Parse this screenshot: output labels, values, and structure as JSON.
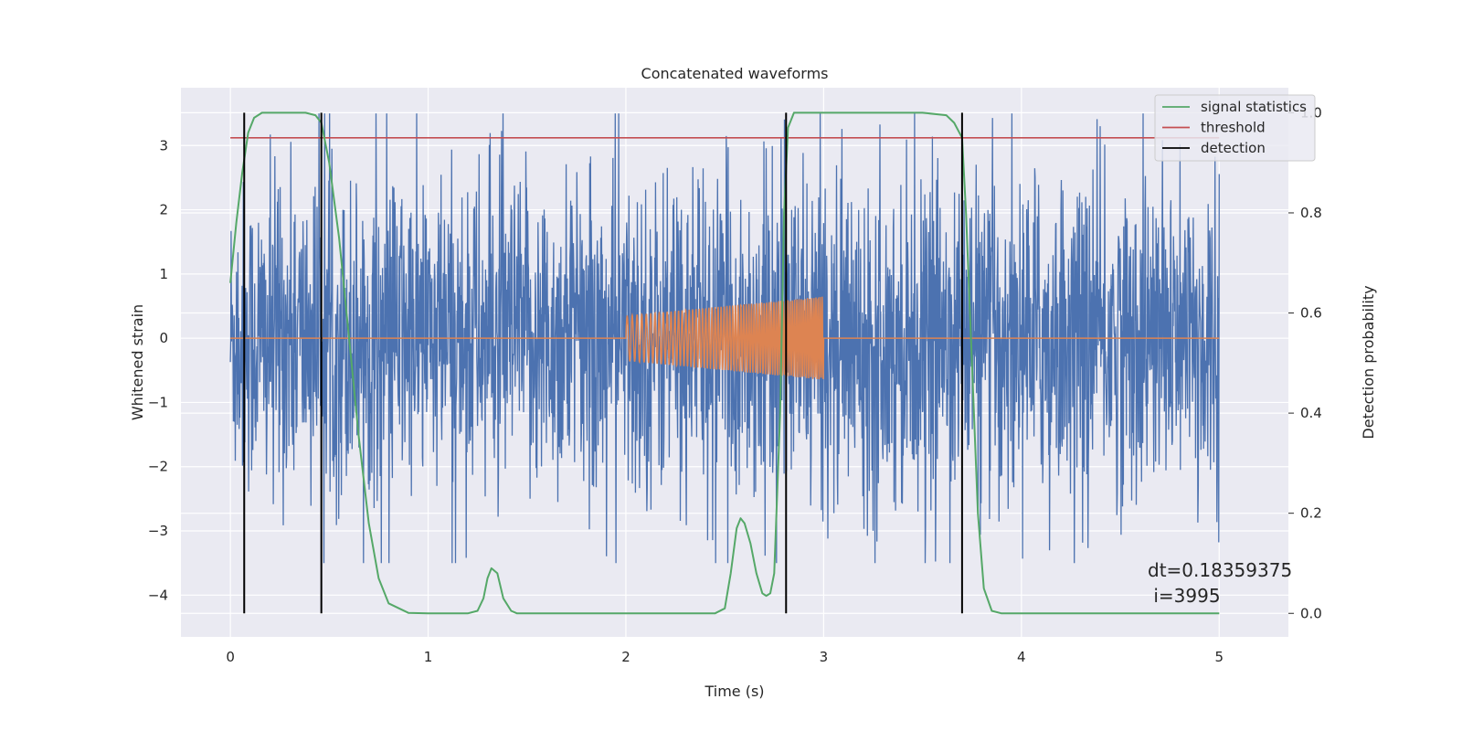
{
  "chart_data": {
    "type": "line",
    "title": "Concatenated waveforms",
    "xlabel": "Time (s)",
    "ylabel": "Whitened strain",
    "ylabel_right": "Detection probability",
    "xlim": [
      -0.25,
      5.35
    ],
    "ylim": [
      -4.65,
      3.9
    ],
    "ylim_right": [
      -0.047,
      1.05
    ],
    "x_ticks": [
      0,
      1,
      2,
      3,
      4,
      5
    ],
    "y_ticks": [
      -4,
      -3,
      -2,
      -1,
      0,
      1,
      2,
      3
    ],
    "y_ticks_right": [
      0.0,
      0.2,
      0.4,
      0.6,
      0.8,
      1.0
    ],
    "grid": true,
    "legend_position": "top-right",
    "legend": [
      "signal statistics",
      "threshold",
      "detection"
    ],
    "annotation_lines": [
      "dt=0.18359375",
      " i=3995"
    ],
    "colors": {
      "strain": "#4c72b0",
      "injection": "#dd8452",
      "signal_statistics": "#55a868",
      "threshold": "#c44e52",
      "detection": "#000000",
      "background": "#eaeaf2",
      "grid": "#ffffff"
    },
    "strain": {
      "name": "",
      "x_range": [
        0,
        5
      ],
      "envelope_min": -3.5,
      "envelope_max": 3.5,
      "typical_amplitude": 1.6
    },
    "injection": {
      "name": "",
      "x_start": 2.0,
      "x_end": 3.0,
      "amplitude_start": 0.35,
      "amplitude_end": 0.65,
      "baseline_x_range": [
        0,
        5
      ]
    },
    "signal_statistics": {
      "axis": "right",
      "x": [
        0.0,
        0.03,
        0.06,
        0.09,
        0.12,
        0.16,
        0.2,
        0.3,
        0.38,
        0.43,
        0.46,
        0.5,
        0.55,
        0.6,
        0.65,
        0.7,
        0.75,
        0.8,
        0.9,
        1.0,
        1.1,
        1.2,
        1.25,
        1.28,
        1.3,
        1.32,
        1.35,
        1.38,
        1.42,
        1.45,
        1.5,
        1.7,
        2.0,
        2.3,
        2.45,
        2.5,
        2.53,
        2.56,
        2.58,
        2.6,
        2.63,
        2.66,
        2.69,
        2.71,
        2.73,
        2.75,
        2.78,
        2.8,
        2.82,
        2.85,
        2.9,
        3.0,
        3.5,
        3.62,
        3.66,
        3.7,
        3.72,
        3.75,
        3.78,
        3.81,
        3.85,
        3.9,
        4.0,
        4.5,
        5.0
      ],
      "y": [
        0.66,
        0.78,
        0.88,
        0.96,
        0.99,
        1.0,
        1.0,
        1.0,
        1.0,
        0.995,
        0.98,
        0.9,
        0.75,
        0.55,
        0.35,
        0.18,
        0.07,
        0.02,
        0.001,
        0.0,
        0.0,
        0.0,
        0.005,
        0.03,
        0.07,
        0.09,
        0.08,
        0.03,
        0.005,
        0.0,
        0.0,
        0.0,
        0.0,
        0.0,
        0.0,
        0.01,
        0.08,
        0.17,
        0.19,
        0.18,
        0.14,
        0.08,
        0.04,
        0.035,
        0.04,
        0.08,
        0.4,
        0.8,
        0.97,
        1.0,
        1.0,
        1.0,
        1.0,
        0.995,
        0.98,
        0.95,
        0.8,
        0.5,
        0.2,
        0.05,
        0.005,
        0.0,
        0.0,
        0.0,
        0.0
      ]
    },
    "threshold": {
      "axis": "right",
      "value": 0.95,
      "x_range": [
        0,
        5
      ]
    },
    "detections": {
      "x": [
        0.07,
        0.46,
        2.81,
        3.7
      ],
      "y_range_right": [
        0.0,
        1.0
      ]
    }
  }
}
